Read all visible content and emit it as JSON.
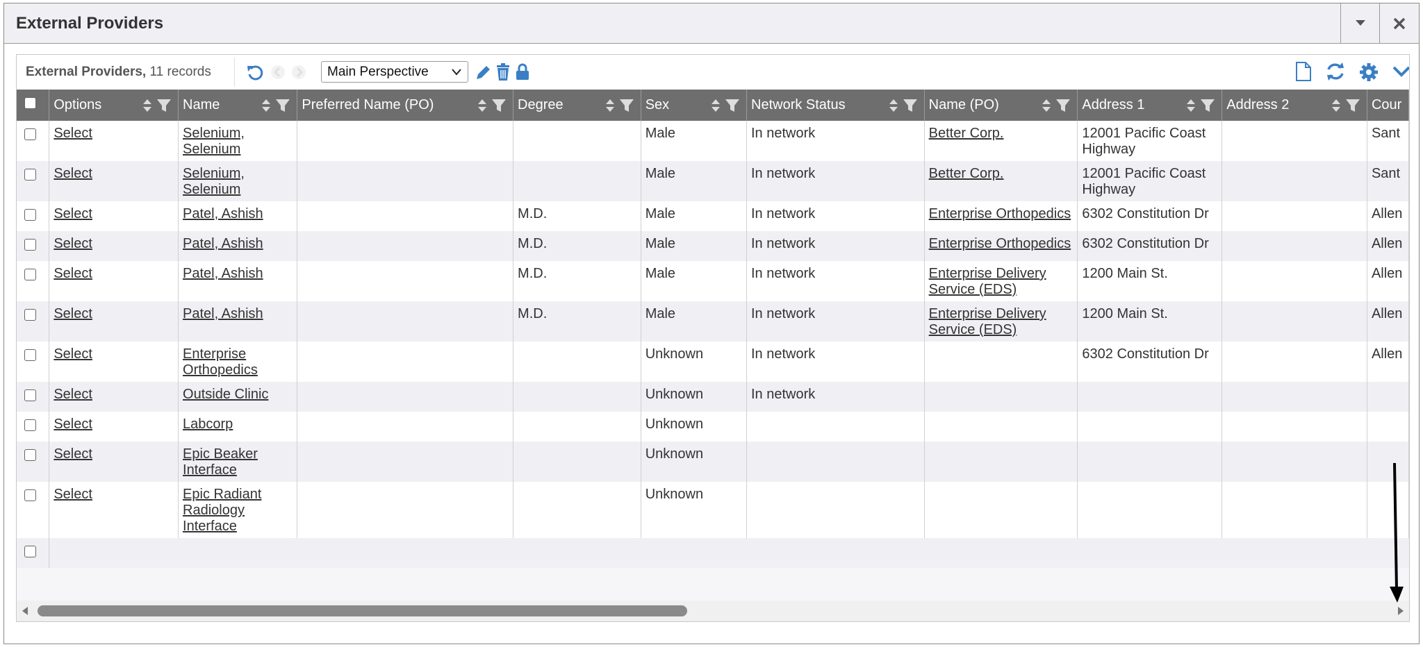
{
  "header": {
    "title": "External Providers"
  },
  "toolbar": {
    "label": "External Providers,",
    "record_count": "11 records",
    "perspective": "Main Perspective"
  },
  "table": {
    "columns": [
      "Options",
      "Name",
      "Preferred Name (PO)",
      "Degree",
      "Sex",
      "Network Status",
      "Name (PO)",
      "Address 1",
      "Address 2",
      "Cour"
    ],
    "rows": [
      [
        "Select",
        "Selenium, Selenium",
        null,
        null,
        "Male",
        "In network",
        "Better Corp.",
        "12001 Pacific Coast Highway",
        null,
        "Sant"
      ],
      [
        "Select",
        "Selenium, Selenium",
        null,
        null,
        "Male",
        "In network",
        "Better Corp.",
        "12001 Pacific Coast Highway",
        null,
        "Sant"
      ],
      [
        "Select",
        "Patel, Ashish",
        null,
        "M.D.",
        "Male",
        "In network",
        "Enterprise Orthopedics",
        "6302 Constitution Dr",
        null,
        "Allen"
      ],
      [
        "Select",
        "Patel, Ashish",
        null,
        "M.D.",
        "Male",
        "In network",
        "Enterprise Orthopedics",
        "6302 Constitution Dr",
        null,
        "Allen"
      ],
      [
        "Select",
        "Patel, Ashish",
        null,
        "M.D.",
        "Male",
        "In network",
        "Enterprise Delivery Service (EDS)",
        "1200 Main St.",
        null,
        "Allen"
      ],
      [
        "Select",
        "Patel, Ashish",
        null,
        "M.D.",
        "Male",
        "In network",
        "Enterprise Delivery Service (EDS)",
        "1200 Main St.",
        null,
        "Allen"
      ],
      [
        "Select",
        "Enterprise Orthopedics",
        null,
        null,
        "Unknown",
        "In network",
        null,
        "6302 Constitution Dr",
        null,
        "Allen"
      ],
      [
        "Select",
        "Outside Clinic",
        null,
        null,
        "Unknown",
        "In network",
        null,
        null,
        null,
        null
      ],
      [
        "Select",
        "Labcorp",
        null,
        null,
        "Unknown",
        null,
        null,
        null,
        null,
        null
      ],
      [
        "Select",
        "Epic Beaker Interface",
        null,
        null,
        "Unknown",
        null,
        null,
        null,
        null,
        null
      ],
      [
        "Select",
        "Epic Radiant Radiology Interface",
        null,
        null,
        "Unknown",
        null,
        null,
        null,
        null,
        null
      ]
    ]
  }
}
